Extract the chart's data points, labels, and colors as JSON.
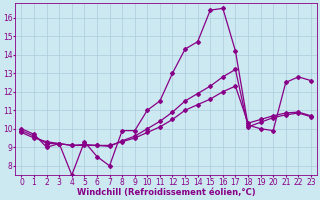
{
  "xlabel": "Windchill (Refroidissement éolien,°C)",
  "background_color": "#cce8f0",
  "grid_color": "#aaccdd",
  "line_color": "#880088",
  "ylim": [
    7.5,
    16.8
  ],
  "xlim": [
    -0.5,
    23.5
  ],
  "xticks": [
    0,
    1,
    2,
    3,
    4,
    5,
    6,
    7,
    8,
    9,
    10,
    11,
    12,
    13,
    14,
    15,
    16,
    17,
    18,
    19,
    20,
    21,
    22,
    23
  ],
  "yticks": [
    8,
    9,
    10,
    11,
    12,
    13,
    14,
    15,
    16
  ],
  "series1_x": [
    0,
    1,
    2,
    3,
    4,
    5,
    6,
    7,
    8,
    9,
    10,
    11,
    12,
    13,
    14,
    15,
    16,
    17,
    18,
    19,
    20,
    21,
    22,
    23
  ],
  "series1_y": [
    10.0,
    9.7,
    9.0,
    9.2,
    7.5,
    9.3,
    8.5,
    8.0,
    9.9,
    9.9,
    11.0,
    11.5,
    13.0,
    14.3,
    14.7,
    16.4,
    16.5,
    14.2,
    10.2,
    10.0,
    9.9,
    12.5,
    12.8,
    12.6
  ],
  "series2_x": [
    0,
    1,
    2,
    3,
    4,
    5,
    6,
    7,
    8,
    9,
    10,
    11,
    12,
    13,
    14,
    15,
    16,
    17,
    18,
    19,
    20,
    21,
    22,
    23
  ],
  "series2_y": [
    9.8,
    9.5,
    9.3,
    9.2,
    9.1,
    9.1,
    9.1,
    9.1,
    9.3,
    9.5,
    9.8,
    10.1,
    10.5,
    11.0,
    11.3,
    11.6,
    12.0,
    12.3,
    10.3,
    10.5,
    10.7,
    10.85,
    10.9,
    10.7
  ],
  "series3_x": [
    0,
    1,
    2,
    3,
    4,
    5,
    6,
    7,
    8,
    9,
    10,
    11,
    12,
    13,
    14,
    15,
    16,
    17,
    18,
    19,
    20,
    21,
    22,
    23
  ],
  "series3_y": [
    9.9,
    9.6,
    9.2,
    9.2,
    9.1,
    9.15,
    9.1,
    9.05,
    9.35,
    9.6,
    10.0,
    10.4,
    10.9,
    11.5,
    11.9,
    12.3,
    12.8,
    13.2,
    10.1,
    10.35,
    10.6,
    10.75,
    10.85,
    10.65
  ],
  "marker": "D",
  "markersize": 2,
  "linewidth": 0.9,
  "xlabel_fontsize": 6,
  "tick_fontsize": 5.5
}
